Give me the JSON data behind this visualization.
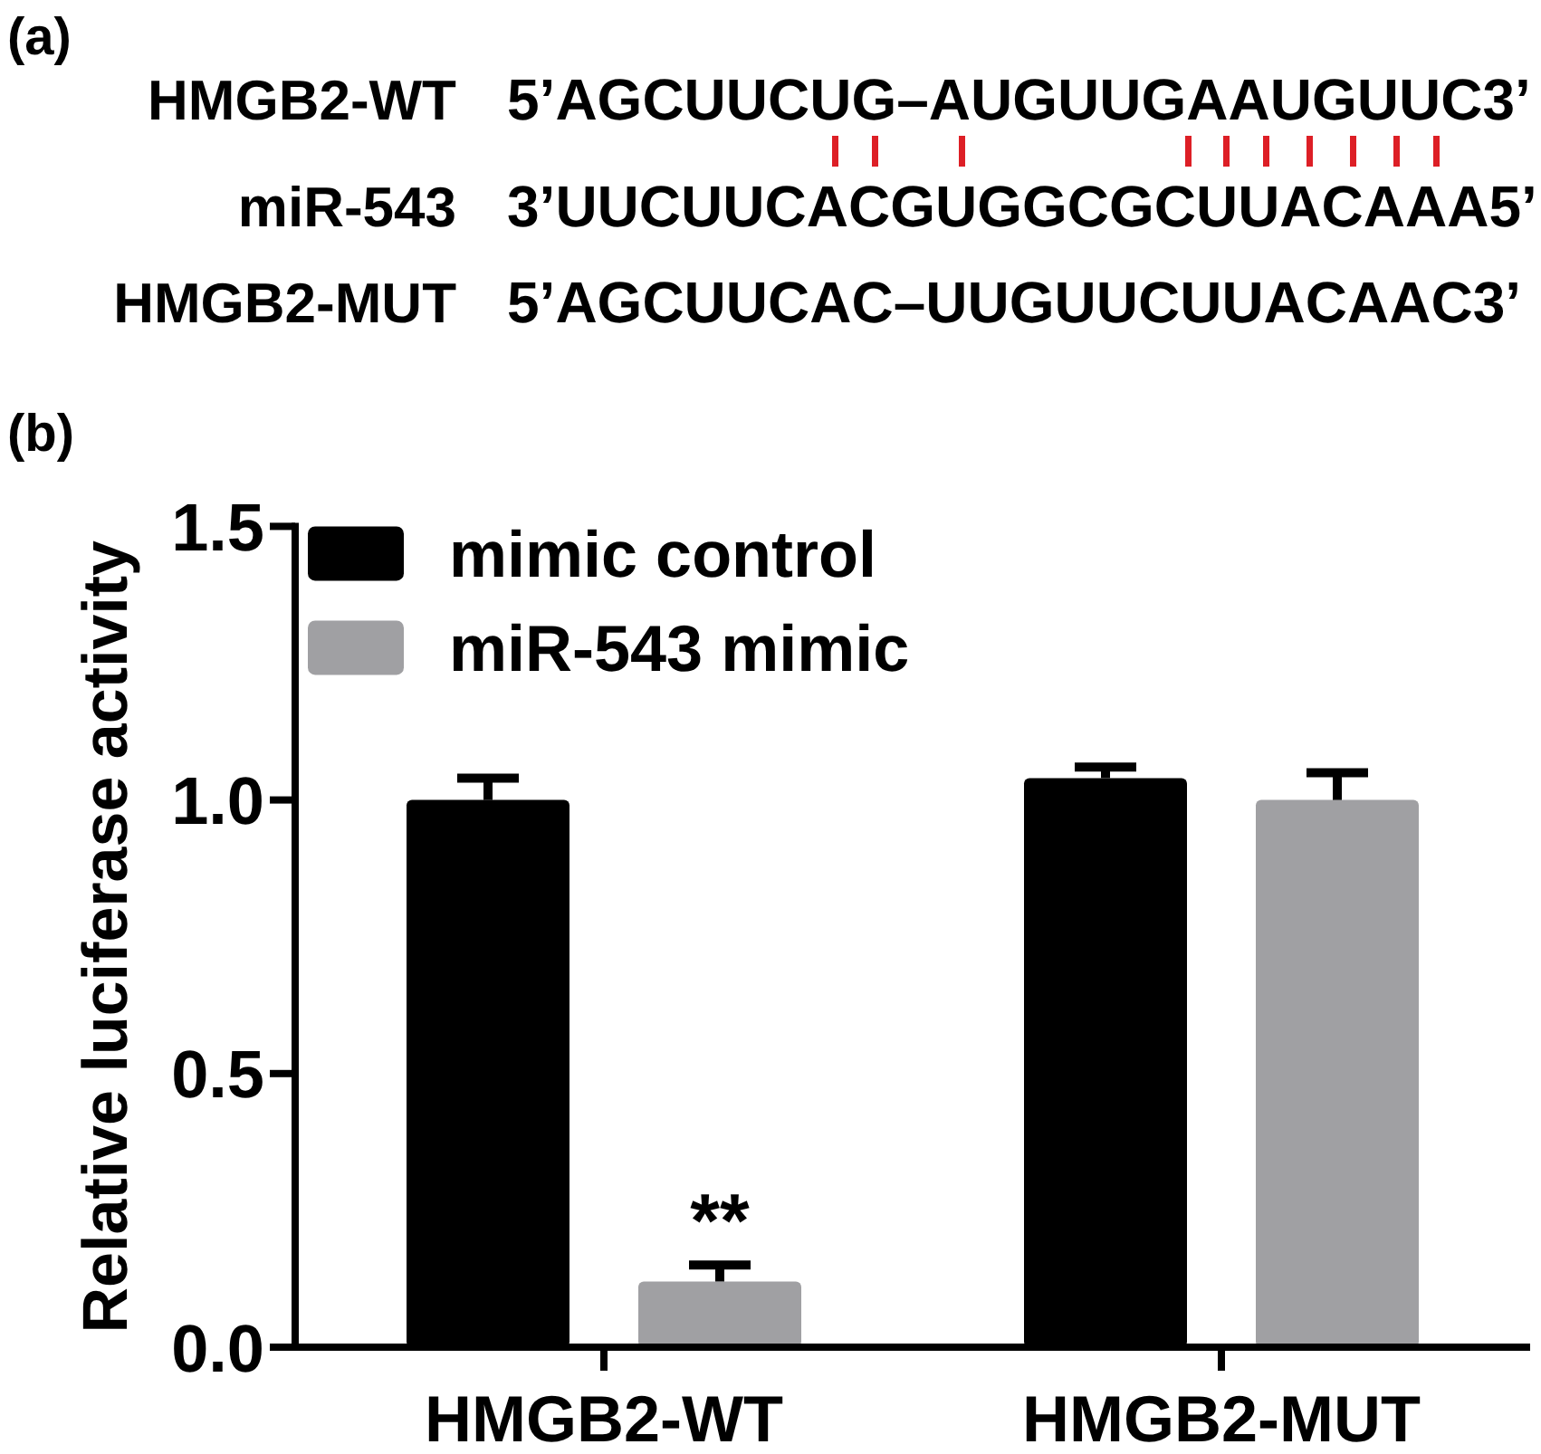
{
  "chart_data": [
    {
      "type": "other",
      "title": "(a)",
      "annotations": [
        "HMGB2-WT",
        "5’AGCUUCUG–AUGUUGAAUGUUC3’",
        "miR-543",
        "3’UUCUUCACGUGGCGCUUACAAA5’",
        "HMGB2-MUT",
        "5’AGCUUCAC–UUGUUCUUACAAC3’"
      ]
    },
    {
      "type": "bar",
      "title": "(b)",
      "ylabel": "Relative luciferase activity",
      "categories": [
        "HMGB2-WT",
        "HMGB2-MUT"
      ],
      "series": [
        {
          "name": "mimic control",
          "color": "#000000",
          "values": [
            1.0,
            1.04
          ],
          "errors": [
            [
              1.0,
              1.04
            ],
            [
              1.04,
              1.06
            ]
          ]
        },
        {
          "name": "miR-543 mimic",
          "color": "#a0a0a3",
          "values": [
            0.12,
            1.0
          ],
          "errors": [
            [
              0.12,
              0.15
            ],
            [
              1.0,
              1.05
            ]
          ]
        }
      ],
      "ylim": [
        0,
        1.5
      ],
      "yticks": [
        {
          "value": 0,
          "label": "0.0"
        },
        {
          "value": 0.5,
          "label": "0.5"
        },
        {
          "value": 1,
          "label": "1.0"
        },
        {
          "value": 1.5,
          "label": "1.5"
        }
      ],
      "legend": "top left",
      "annotations": [
        "**"
      ]
    }
  ]
}
